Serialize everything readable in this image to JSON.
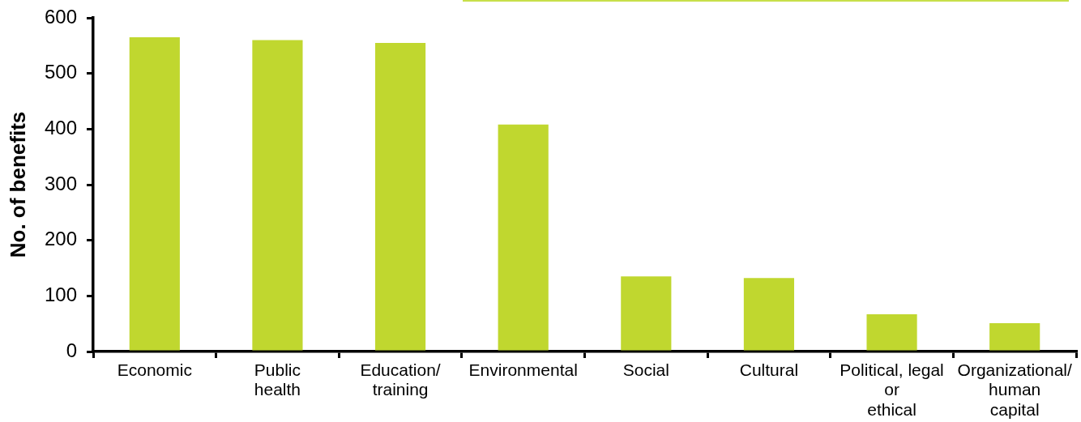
{
  "chart_data": {
    "type": "bar",
    "categories": [
      "Economic",
      "Public\nhealth",
      "Education/\ntraining",
      "Environmental",
      "Social",
      "Cultural",
      "Political, legal\nor\nethical",
      "Organizational/\nhuman\ncapital"
    ],
    "values": [
      565,
      560,
      555,
      408,
      135,
      132,
      67,
      51
    ],
    "color": "#c0d72f",
    "ylabel": "No. of benefits",
    "ylim": [
      0,
      600
    ],
    "yticks": [
      0,
      100,
      200,
      300,
      400,
      500,
      600
    ],
    "grid": false,
    "legend": false
  }
}
